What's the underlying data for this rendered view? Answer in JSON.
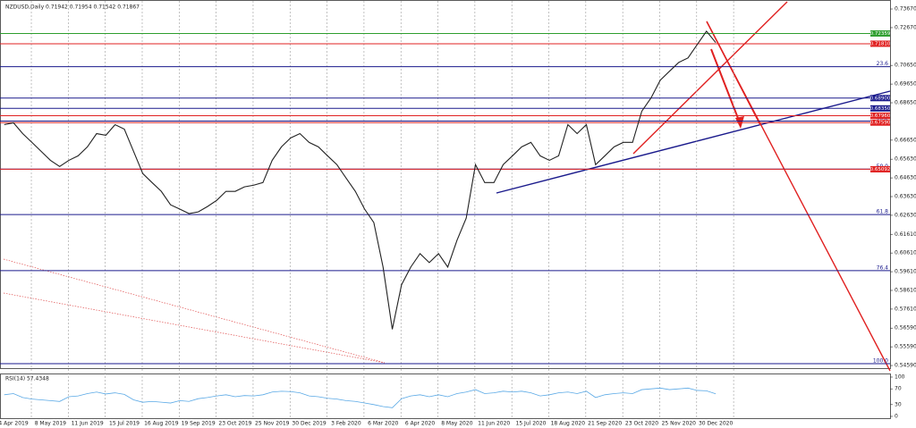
{
  "chart_data": {
    "type": "line",
    "title": "NZDUSD,Daily  0.71942 0.71954 0.71542 0.71867",
    "categories": [
      null,
      "4 Apr 2019",
      null,
      null,
      null,
      "8 May 2019",
      null,
      null,
      null,
      "11 Jun 2019",
      null,
      null,
      null,
      "15 Jul 2019",
      null,
      null,
      null,
      "16 Aug 2019",
      null,
      null,
      null,
      "19 Sep 2019",
      null,
      null,
      null,
      "23 Oct 2019",
      null,
      null,
      null,
      "25 Nov 2019",
      null,
      null,
      null,
      "30 Dec 2019",
      null,
      null,
      null,
      "3 Feb 2020",
      null,
      null,
      null,
      "6 Mar 2020",
      null,
      null,
      null,
      "6 Apr 2020",
      null,
      null,
      null,
      "8 May 2020",
      null,
      null,
      null,
      "11 Jun 2020",
      null,
      null,
      null,
      "15 Jul 2020",
      null,
      null,
      null,
      "18 Aug 2020",
      null,
      null,
      null,
      "21 Sep 2020",
      null,
      null,
      null,
      "23 Oct 2020",
      null,
      null,
      null,
      "25 Nov 2020",
      null,
      null,
      null,
      "30 Dec 2020"
    ],
    "series": [
      {
        "name": "NZDUSD",
        "color": "#222222",
        "values": [
          0.6748,
          0.6758,
          0.67,
          0.6653,
          0.6605,
          0.6557,
          0.6524,
          0.6557,
          0.6581,
          0.6629,
          0.67,
          0.6691,
          0.6748,
          0.6724,
          0.6605,
          0.6486,
          0.6438,
          0.6391,
          0.6319,
          0.6296,
          0.6272,
          0.6281,
          0.631,
          0.6343,
          0.6391,
          0.6391,
          0.6415,
          0.6424,
          0.6438,
          0.6557,
          0.6629,
          0.6677,
          0.67,
          0.6653,
          0.6629,
          0.6581,
          0.6534,
          0.6462,
          0.6391,
          0.6296,
          0.6224,
          0.5986,
          0.5653,
          0.5891,
          0.5986,
          0.6058,
          0.601,
          0.6058,
          0.5986,
          0.6129,
          0.6248,
          0.6534,
          0.6438,
          0.6438,
          0.6534,
          0.6581,
          0.6629,
          0.6653,
          0.6581,
          0.6557,
          0.6581,
          0.6748,
          0.67,
          0.6748,
          0.6534,
          0.6581,
          0.6629,
          0.6653,
          0.6653,
          0.682,
          0.6891,
          0.6986,
          0.7034,
          0.7081,
          0.7105,
          0.7177,
          0.7248,
          0.7187
        ]
      }
    ],
    "ylim": [
      0.5445,
      0.7415
    ],
    "yticks": [
      {
        "value": 0.7367,
        "label": "0.73670"
      },
      {
        "value": 0.7267,
        "label": "0.72670"
      },
      {
        "value": 0.7065,
        "label": "0.70650"
      },
      {
        "value": 0.6965,
        "label": "0.69650"
      },
      {
        "value": 0.6865,
        "label": "0.68650"
      },
      {
        "value": 0.6665,
        "label": "0.66650"
      },
      {
        "value": 0.6563,
        "label": "0.65630"
      },
      {
        "value": 0.6463,
        "label": "0.64630"
      },
      {
        "value": 0.6363,
        "label": "0.63630"
      },
      {
        "value": 0.6263,
        "label": "0.62630"
      },
      {
        "value": 0.6161,
        "label": "0.61610"
      },
      {
        "value": 0.6061,
        "label": "0.60610"
      },
      {
        "value": 0.5961,
        "label": "0.59610"
      },
      {
        "value": 0.5861,
        "label": "0.58610"
      },
      {
        "value": 0.5761,
        "label": "0.57610"
      },
      {
        "value": 0.5659,
        "label": "0.56590"
      },
      {
        "value": 0.5559,
        "label": "0.55590"
      },
      {
        "value": 0.5459,
        "label": "0.54590"
      }
    ],
    "price_levels": [
      {
        "value": 0.72359,
        "label": "0.72359",
        "color": "#2e9e2e"
      },
      {
        "value": 0.7181,
        "label": "0.71810",
        "color": "#e02020"
      },
      {
        "value": 0.689,
        "label": "0.68900",
        "color": "#1a1a8c"
      },
      {
        "value": 0.6835,
        "label": "0.68350",
        "color": "#1a1a8c"
      },
      {
        "value": 0.6796,
        "label": "0.67960",
        "color": "#e02020"
      },
      {
        "value": 0.6759,
        "label": "0.67590",
        "color": "#e02020"
      },
      {
        "value": 0.65092,
        "label": "0.65092",
        "color": "#e02020"
      }
    ],
    "fib_levels": [
      {
        "level": "23.6",
        "value": 0.7058
      },
      {
        "level": "38.2",
        "value": 0.6767
      },
      {
        "level": "50.0",
        "value": 0.651
      },
      {
        "level": "61.8",
        "value": 0.6267
      },
      {
        "level": "76.4",
        "value": 0.5967
      },
      {
        "level": "100.0",
        "value": 0.5469
      }
    ],
    "rsi": {
      "title": "RSI(14) 57.4348",
      "color": "#5aa9e6",
      "ylim": [
        0,
        100
      ],
      "yticks": [
        100,
        70,
        30,
        0
      ],
      "values": [
        55,
        58,
        48,
        44,
        42,
        40,
        38,
        50,
        52,
        58,
        62,
        57,
        60,
        56,
        42,
        36,
        38,
        36,
        34,
        40,
        38,
        45,
        48,
        52,
        55,
        50,
        53,
        52,
        55,
        62,
        64,
        63,
        60,
        52,
        50,
        46,
        44,
        40,
        38,
        34,
        30,
        25,
        22,
        45,
        52,
        55,
        50,
        55,
        50,
        58,
        62,
        68,
        58,
        60,
        64,
        62,
        64,
        60,
        52,
        55,
        60,
        62,
        58,
        64,
        48,
        55,
        58,
        60,
        58,
        68,
        70,
        72,
        68,
        70,
        72,
        66,
        65,
        57.4348
      ]
    }
  }
}
